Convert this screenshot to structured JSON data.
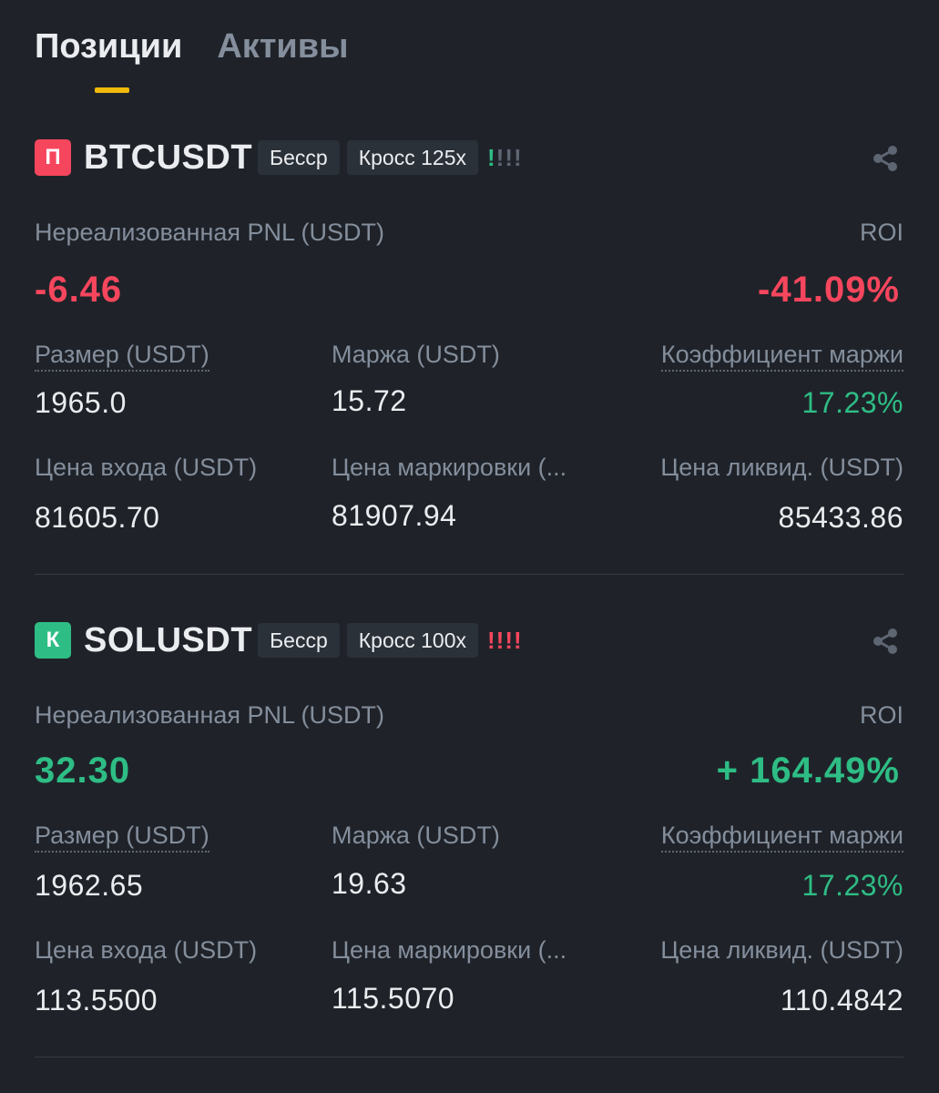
{
  "tabs": [
    {
      "label": "Позиции",
      "active": true
    },
    {
      "label": "Активы",
      "active": false
    }
  ],
  "colors": {
    "accent": "#f0b90b",
    "up": "#2ebd85",
    "down": "#f6465d",
    "risk_gray": "#5e6673"
  },
  "positions": [
    {
      "side_letter": "П",
      "side_color": "#f6465d",
      "symbol": "BTCUSDT",
      "mode_tag": "Бесср",
      "margin_tag": "Кросс 125x",
      "risk_level": 1,
      "risk_color": "#2ebd85",
      "pnl_label": "Нереализованная PNL (USDT)",
      "pnl_value": "-6.46",
      "pnl_color": "#f6465d",
      "roi_label": "ROI",
      "roi_value": "-41.09%",
      "roi_color": "#f6465d",
      "size_label": "Размер (USDT)",
      "size_value": "1965.0",
      "margin_label": "Маржа (USDT)",
      "margin_value": "15.72",
      "ratio_label": "Коэффициент маржи",
      "ratio_value": "17.23%",
      "entry_label": "Цена входа (USDT)",
      "entry_value": "81605.70",
      "mark_label": "Цена маркировки (...",
      "mark_value": "81907.94",
      "liq_label": "Цена ликвид. (USDT)",
      "liq_value": "85433.86",
      "share_icon": "share-icon"
    },
    {
      "side_letter": "К",
      "side_color": "#2ebd85",
      "symbol": "SOLUSDT",
      "mode_tag": "Бесср",
      "margin_tag": "Кросс 100x",
      "risk_level": 4,
      "risk_color": "#f6465d",
      "pnl_label": "Нереализованная PNL (USDT)",
      "pnl_value": "32.30",
      "pnl_color": "#2ebd85",
      "roi_label": "ROI",
      "roi_value": "+ 164.49%",
      "roi_color": "#2ebd85",
      "size_label": "Размер (USDT)",
      "size_value": "1962.65",
      "margin_label": "Маржа (USDT)",
      "margin_value": "19.63",
      "ratio_label": "Коэффициент маржи",
      "ratio_value": "17.23%",
      "entry_label": "Цена входа (USDT)",
      "entry_value": "113.5500",
      "mark_label": "Цена маркировки (...",
      "mark_value": "115.5070",
      "liq_label": "Цена ликвид. (USDT)",
      "liq_value": "110.4842",
      "share_icon": "share-icon"
    }
  ]
}
